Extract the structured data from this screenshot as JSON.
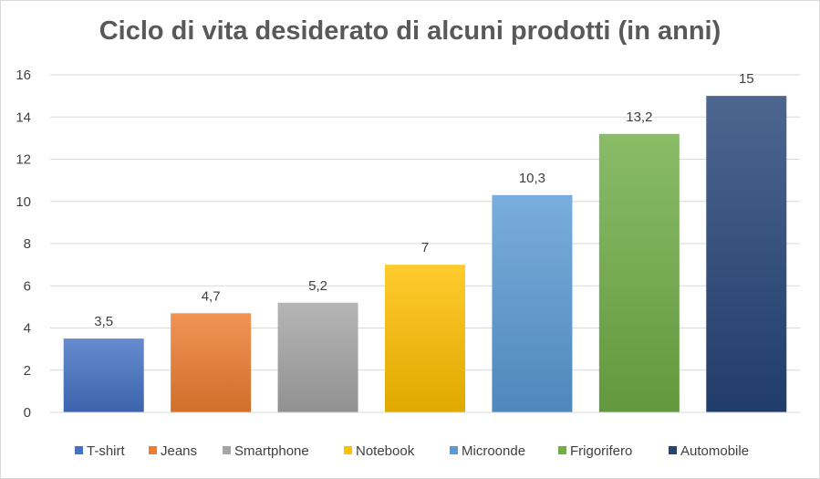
{
  "chart_data": {
    "type": "bar",
    "title": "Ciclo di vita desiderato di alcuni prodotti (in anni)",
    "categories": [
      "T-shirt",
      "Jeans",
      "Smartphone",
      "Notebook",
      "Microonde",
      "Frigorifero",
      "Automobile"
    ],
    "values": [
      3.5,
      4.7,
      5.2,
      7,
      10.3,
      13.2,
      15
    ],
    "data_labels": [
      "3,5",
      "4,7",
      "5,2",
      "7",
      "10,3",
      "13,2",
      "15"
    ],
    "colors": [
      "#4472c4",
      "#ed7d31",
      "#a5a5a5",
      "#ffc000",
      "#5b9bd5",
      "#70ad47",
      "#264478"
    ],
    "ylim": [
      0,
      16
    ],
    "yticks": [
      "0",
      "2",
      "4",
      "6",
      "8",
      "10",
      "12",
      "14",
      "16"
    ],
    "grid": true,
    "legend": "bottom",
    "xlabel": "",
    "ylabel": ""
  }
}
